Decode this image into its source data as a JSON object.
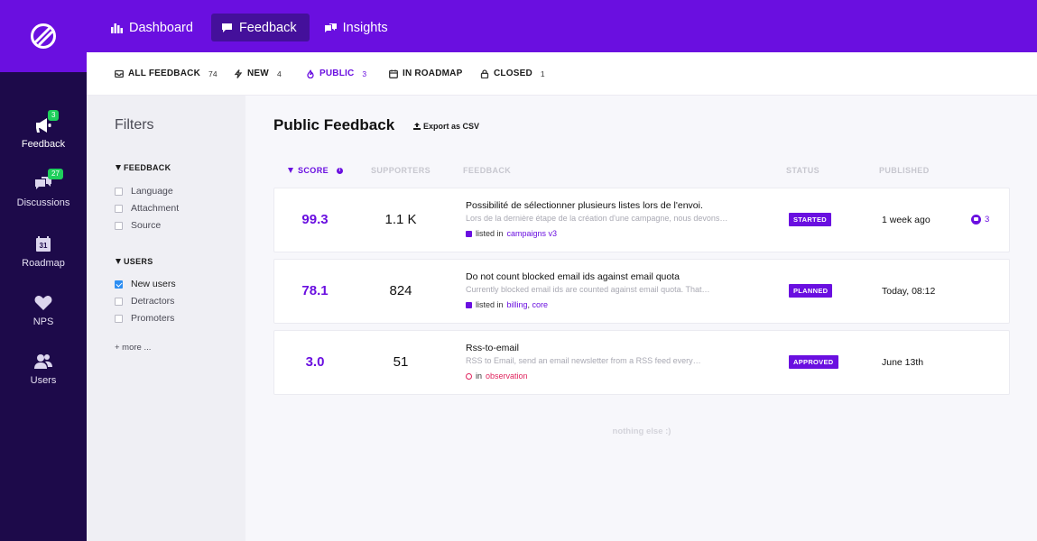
{
  "nav": {
    "items": [
      {
        "label": "Dashboard",
        "icon": "bar-chart-icon"
      },
      {
        "label": "Feedback",
        "icon": "message-icon"
      },
      {
        "label": "Insights",
        "icon": "insights-icon"
      }
    ],
    "active": "Feedback"
  },
  "sidebar": {
    "items": [
      {
        "label": "Feedback",
        "icon": "megaphone-icon",
        "badge": "3"
      },
      {
        "label": "Discussions",
        "icon": "chat-bubbles-icon",
        "badge": "27"
      },
      {
        "label": "Roadmap",
        "icon": "calendar-icon",
        "calendar_day": "31"
      },
      {
        "label": "NPS",
        "icon": "heart-icon"
      },
      {
        "label": "Users",
        "icon": "users-icon"
      }
    ]
  },
  "tabs": [
    {
      "label": "ALL FEEDBACK",
      "count": "74",
      "icon": "inbox-icon"
    },
    {
      "label": "NEW",
      "count": "4",
      "icon": "bolt-icon"
    },
    {
      "label": "PUBLIC",
      "count": "3",
      "icon": "flame-icon"
    },
    {
      "label": "IN ROADMAP",
      "count": "",
      "icon": "calendar-icon"
    },
    {
      "label": "CLOSED",
      "count": "1",
      "icon": "lock-icon"
    }
  ],
  "filters": {
    "title": "Filters",
    "groups": [
      {
        "title": "FEEDBACK",
        "options": [
          {
            "label": "Language",
            "checked": false
          },
          {
            "label": "Attachment",
            "checked": false
          },
          {
            "label": "Source",
            "checked": false
          }
        ]
      },
      {
        "title": "USERS",
        "options": [
          {
            "label": "New users",
            "checked": true
          },
          {
            "label": "Detractors",
            "checked": false
          },
          {
            "label": "Promoters",
            "checked": false
          }
        ]
      }
    ],
    "more": "+ more ..."
  },
  "main": {
    "title": "Public Feedback",
    "export_label": "Export as CSV",
    "columns": {
      "score": "SCORE",
      "supporters": "SUPPORTERS",
      "feedback": "FEEDBACK",
      "status": "STATUS",
      "published": "PUBLISHED"
    },
    "rows": [
      {
        "score": "99.3",
        "supporters": "1.1 K",
        "title": "Possibilité de sélectionner plusieurs listes lors de l'envoi.",
        "desc": "Lors de la dernière étape de la création d'une campagne, nous devons…",
        "list_prefix": "listed in",
        "lists": [
          "campaigns v3"
        ],
        "status": "STARTED",
        "published": "1 week ago",
        "comments": "3"
      },
      {
        "score": "78.1",
        "supporters": "824",
        "title": "Do not count blocked email ids against email quota",
        "desc": "Currently blocked email ids are counted against email quota. That…",
        "list_prefix": "listed in",
        "lists": [
          "billing",
          "core"
        ],
        "status": "PLANNED",
        "published": "Today, 08:12",
        "comments": ""
      },
      {
        "score": "3.0",
        "supporters": "51",
        "title": "Rss-to-email",
        "desc": "RSS to Email, send an email newsletter from a RSS feed every…",
        "list_prefix": "in",
        "lists": [
          "observation"
        ],
        "status": "APPROVED",
        "published": "June 13th",
        "comments": ""
      }
    ],
    "empty_text": "nothing else :)"
  },
  "colors": {
    "brand": "#6a0fe0",
    "sidebar": "#1d0a4a",
    "badge": "#1fcf5c",
    "observation": "#e0245e"
  }
}
